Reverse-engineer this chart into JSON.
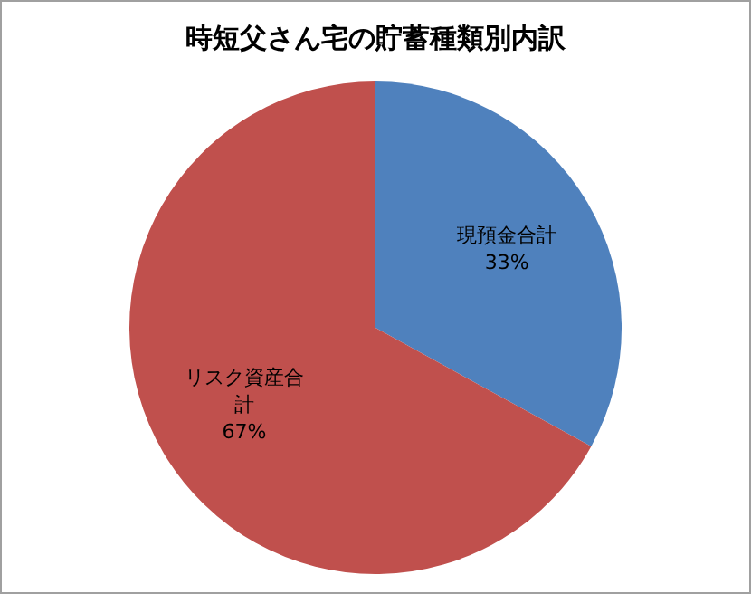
{
  "chart_data": {
    "type": "pie",
    "title": "時短父さん宅の貯蓄種類別内訳",
    "categories": [
      "現預金合計",
      "リスク資産合計"
    ],
    "values": [
      33,
      67
    ],
    "colors": [
      "#4f81bd",
      "#c0504d"
    ],
    "value_labels": [
      "33%",
      "67%"
    ],
    "legend": false
  }
}
